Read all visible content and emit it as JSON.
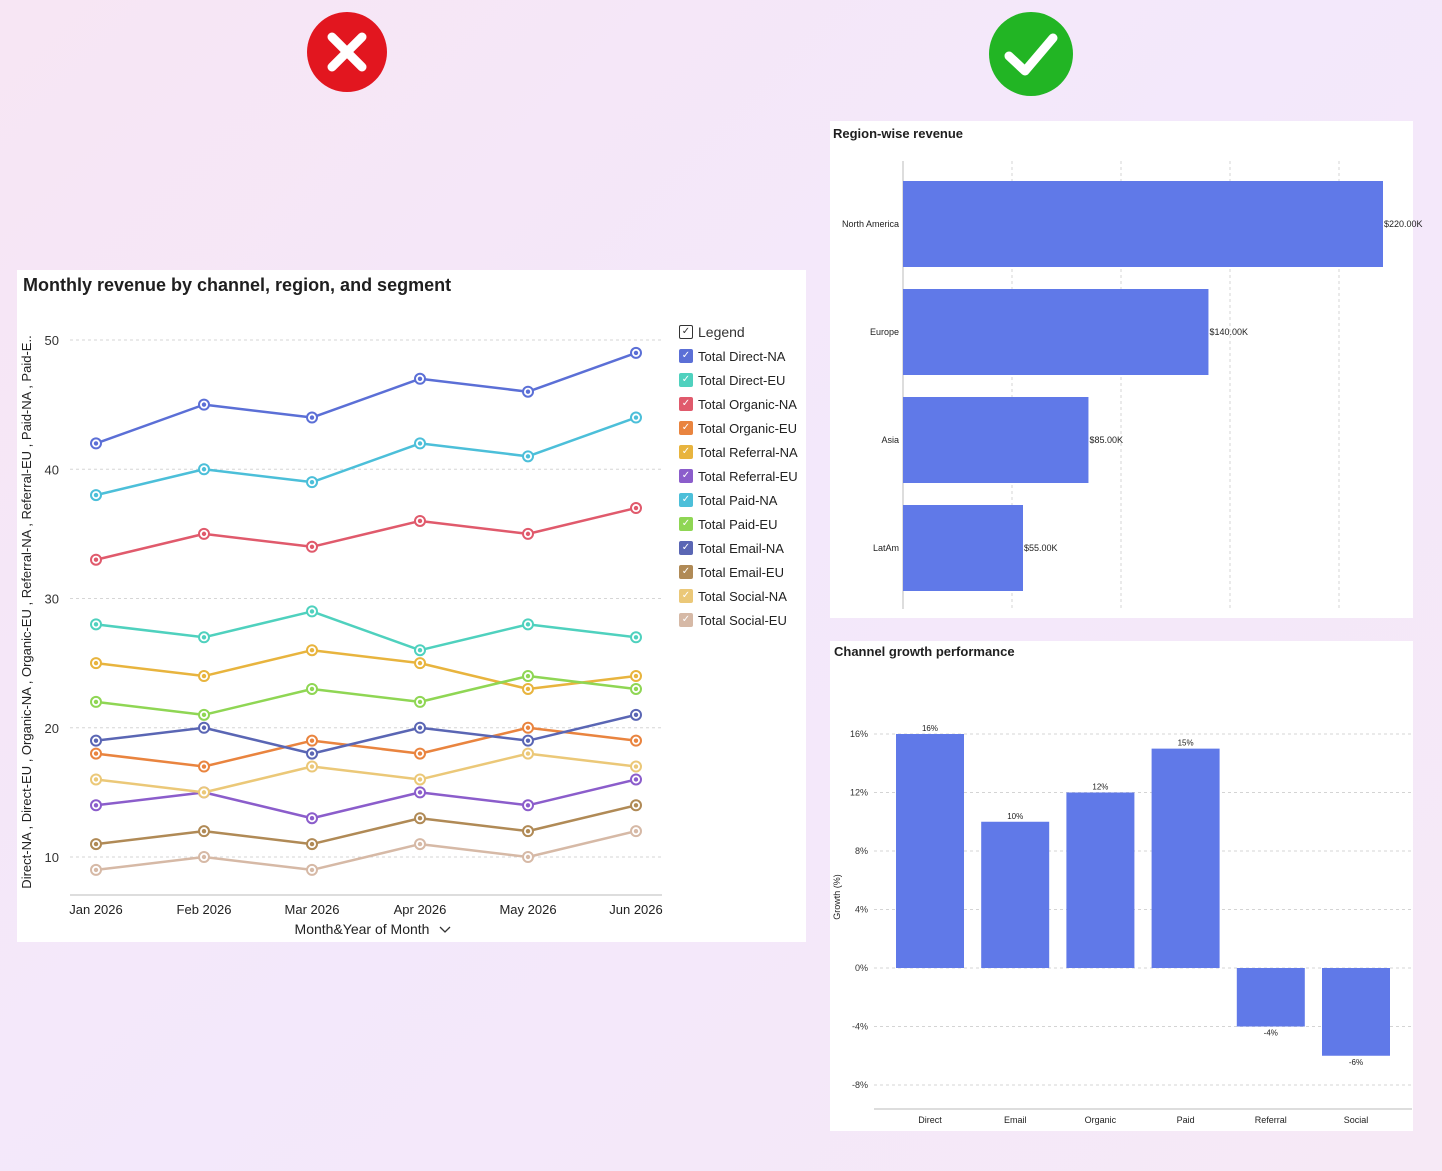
{
  "verdicts": {
    "bad_label": "wrong",
    "good_label": "correct",
    "bad_color": "#e2161f",
    "good_color": "#22b524"
  },
  "chart_data": [
    {
      "type": "line",
      "title": "Monthly revenue by channel, region, and segment",
      "xlabel": "Month&Year of Month",
      "ylabel": "Direct-NA , Direct-EU , Organic-NA , Organic-EU , Referral-NA , Referral-EU , Paid-NA , Paid-E..",
      "ylim": [
        7,
        52
      ],
      "yticks": [
        10,
        20,
        30,
        40,
        50
      ],
      "categories": [
        "Jan 2026",
        "Feb 2026",
        "Mar 2026",
        "Apr 2026",
        "May 2026",
        "Jun 2026"
      ],
      "legend_title": "Legend",
      "legend_check": "✓",
      "series": [
        {
          "name": "Total Direct-NA",
          "color": "#5b6fd6",
          "values": [
            42,
            45,
            44,
            47,
            46,
            49
          ]
        },
        {
          "name": "Total Direct-EU",
          "color": "#4fd1be",
          "values": [
            28,
            27,
            29,
            26,
            28,
            27
          ]
        },
        {
          "name": "Total Organic-NA",
          "color": "#e05a6c",
          "values": [
            33,
            35,
            34,
            36,
            35,
            37
          ]
        },
        {
          "name": "Total Organic-EU",
          "color": "#e9843f",
          "values": [
            18,
            17,
            19,
            18,
            20,
            19
          ]
        },
        {
          "name": "Total Referral-NA",
          "color": "#e8b43e",
          "values": [
            25,
            24,
            26,
            25,
            23,
            24
          ]
        },
        {
          "name": "Total Referral-EU",
          "color": "#8b5dcb",
          "values": [
            14,
            15,
            13,
            15,
            14,
            16
          ]
        },
        {
          "name": "Total Paid-NA",
          "color": "#4cbfd9",
          "values": [
            38,
            40,
            39,
            42,
            41,
            44
          ]
        },
        {
          "name": "Total Paid-EU",
          "color": "#8fd654",
          "values": [
            22,
            21,
            23,
            22,
            24,
            23
          ]
        },
        {
          "name": "Total Email-NA",
          "color": "#5a66b4",
          "values": [
            19,
            20,
            18,
            20,
            19,
            21
          ]
        },
        {
          "name": "Total Email-EU",
          "color": "#b08a56",
          "values": [
            11,
            12,
            11,
            13,
            12,
            14
          ]
        },
        {
          "name": "Total Social-NA",
          "color": "#ebc878",
          "values": [
            16,
            15,
            17,
            16,
            18,
            17
          ]
        },
        {
          "name": "Total Social-EU",
          "color": "#d6b9a6",
          "values": [
            9,
            10,
            9,
            11,
            10,
            12
          ]
        }
      ]
    },
    {
      "type": "bar",
      "orientation": "horizontal",
      "title": "Region-wise revenue",
      "categories": [
        "North America",
        "Europe",
        "Asia",
        "LatAm"
      ],
      "values": [
        220000,
        140000,
        85000,
        55000
      ],
      "labels": [
        "$220.00K",
        "$140.00K",
        "$85.00K",
        "$55.00K"
      ],
      "xlim": [
        0,
        220000
      ],
      "color": "#6079e8"
    },
    {
      "type": "bar",
      "title": "Channel growth performance",
      "ylabel": "Growth (%)",
      "categories": [
        "Direct",
        "Email",
        "Organic",
        "Paid",
        "Referral",
        "Social"
      ],
      "values": [
        16,
        10,
        12,
        15,
        -4,
        -6
      ],
      "labels": [
        "16%",
        "10%",
        "12%",
        "15%",
        "-4%",
        "-6%"
      ],
      "ylim": [
        -8,
        16
      ],
      "yticks": [
        16,
        12,
        8,
        4,
        0,
        -4,
        -8
      ],
      "ytick_labels": [
        "16%",
        "12%",
        "8%",
        "4%",
        "0%",
        "-4%",
        "-8%"
      ],
      "color": "#6079e8"
    }
  ]
}
